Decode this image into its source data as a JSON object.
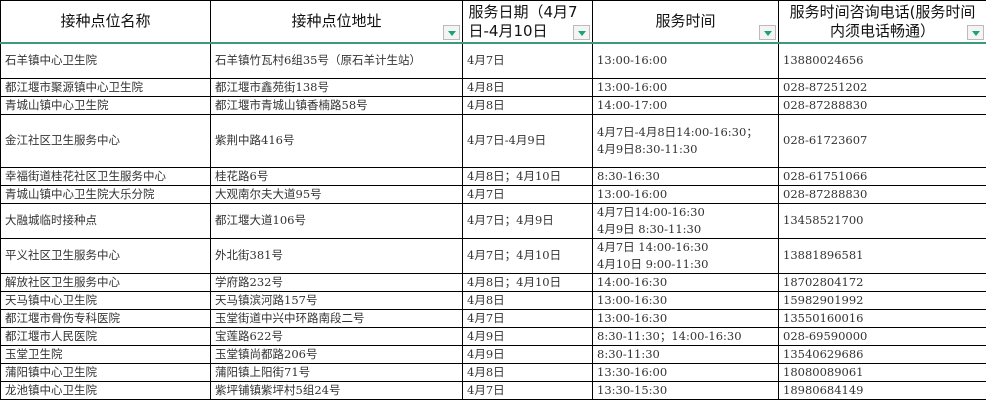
{
  "headers": [
    {
      "label": "接种点位名称",
      "filter": false
    },
    {
      "label": "接种点位地址",
      "filter": true
    },
    {
      "label": "服务日期（4月7日-4月10日",
      "filter": true
    },
    {
      "label": "服务时间",
      "filter": true
    },
    {
      "label": "服务时间咨询电话(服务时间内须电话畅通）",
      "filter": true
    }
  ],
  "rows": [
    {
      "name": "石羊镇中心卫生院",
      "address": "石羊镇竹瓦村6组35号（原石羊计生站）",
      "date": "4月7日",
      "time": [
        "13:00-16:00"
      ],
      "phone": "13880024656"
    },
    {
      "name": "都江堰市聚源镇中心卫生院",
      "address": "都江堰市鑫苑街138号",
      "date": "4月8日",
      "time": [
        "13:00-16:00"
      ],
      "phone": "028-87251202"
    },
    {
      "name": "青城山镇中心卫生院",
      "address": "都江堰市青城山镇香楠路58号",
      "date": "4月8日",
      "time": [
        "14:00-17:00"
      ],
      "phone": "028-87288830"
    },
    {
      "name": "金江社区卫生服务中心",
      "address": "紫荆中路416号",
      "date": "4月7日-4月9日",
      "time": [
        "4月7日-4月8日14:00-16:30；",
        "4月9日8:30-11:30"
      ],
      "phone": "028-61723607"
    },
    {
      "name": "幸福街道桂花社区卫生服务中心",
      "address": "桂花路6号",
      "date": "4月8日；4月10日",
      "time": [
        "8:30-16:30"
      ],
      "phone": "028-61751066"
    },
    {
      "name": "青城山镇中心卫生院大乐分院",
      "address": "大观南尔夫大道95号",
      "date": "4月7日",
      "time": [
        "13:00-16:00"
      ],
      "phone": "028-87288830"
    },
    {
      "name": "大融城临时接种点",
      "address": "都江堰大道106号",
      "date": "4月7日；4月9日",
      "time": [
        "4月7日14:00-16:30",
        "4月9日 8:30-11:30"
      ],
      "phone": "13458521700"
    },
    {
      "name": "平义社区卫生服务中心",
      "address": "外北街381号",
      "date": "4月7日；4月10日",
      "time": [
        "4月7日 14:00-16:30",
        "4月10日 9:00-11:30"
      ],
      "phone": "13881896581"
    },
    {
      "name": "解放社区卫生服务中心",
      "address": "学府路232号",
      "date": "4月8日；4月10日",
      "time": [
        "14:00-16:30"
      ],
      "phone": "18702804172"
    },
    {
      "name": "天马镇中心卫生院",
      "address": "天马镇滨河路157号",
      "date": "4月8日",
      "time": [
        "13:00-16:30"
      ],
      "phone": "15982901992"
    },
    {
      "name": "都江堰市骨伤专科医院",
      "address": "玉堂街道中兴中环路南段二号",
      "date": "4月7日",
      "time": [
        "13:00-16:30"
      ],
      "phone": "13550160016"
    },
    {
      "name": "都江堰市人民医院",
      "address": "宝莲路622号",
      "date": "4月9日",
      "time": [
        "8:30-11:30；14:00-16:30"
      ],
      "phone": "028-69590000"
    },
    {
      "name": "玉堂卫生院",
      "address": "玉堂镇尚都路206号",
      "date": "4月9日",
      "time": [
        "8:30-11:30"
      ],
      "phone": "13540629686"
    },
    {
      "name": "蒲阳镇中心卫生院",
      "address": "蒲阳镇上阳街71号",
      "date": "4月8日",
      "time": [
        "13:30-16:00"
      ],
      "phone": "18080089061"
    },
    {
      "name": "龙池镇中心卫生院",
      "address": "紫坪铺镇紫坪村5组24号",
      "date": "4月7日",
      "time": [
        "13:30-15:30"
      ],
      "phone": "18980684149"
    }
  ],
  "colors": {
    "filter_arrow": "#1aa37a",
    "header_border": "#3a9a7a"
  }
}
